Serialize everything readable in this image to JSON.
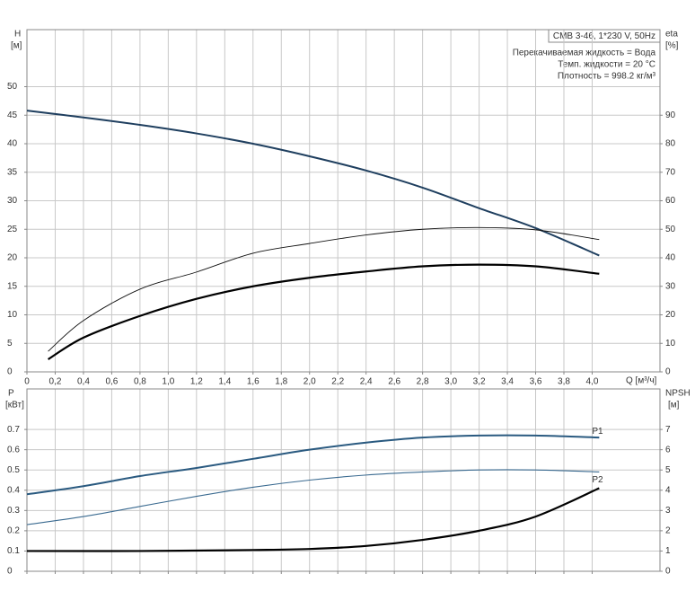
{
  "chart_data": [
    {
      "type": "line",
      "xlabel": "Q [м³/ч]",
      "ylabel": "H",
      "ylabel_unit": "[м]",
      "y2label": "eta",
      "y2label_unit": "[%]",
      "annotations": [
        "CMB 3-46, 1*230 V, 50Hz",
        "Перекачиваемая жидкость = Вода",
        "Темп. жидкости = 20 °C",
        "Плотность = 998.2 кг/м³"
      ],
      "xlim": [
        0,
        4.48
      ],
      "ylim": [
        0,
        60
      ],
      "y2lim": [
        0,
        120
      ],
      "xticks": [
        0,
        {
          "value": 0.2,
          "label": "0,2"
        },
        {
          "value": 0.4,
          "label": "0,4"
        },
        {
          "value": 0.6,
          "label": "0,6"
        },
        {
          "value": 0.8,
          "label": "0,8"
        },
        {
          "value": 1.0,
          "label": "1,0"
        },
        {
          "value": 1.2,
          "label": "1,2"
        },
        {
          "value": 1.4,
          "label": "1,4"
        },
        {
          "value": 1.6,
          "label": "1,6"
        },
        {
          "value": 1.8,
          "label": "1,8"
        },
        {
          "value": 2.0,
          "label": "2,0"
        },
        {
          "value": 2.2,
          "label": "2,2"
        },
        {
          "value": 2.4,
          "label": "2,4"
        },
        {
          "value": 2.6,
          "label": "2,6"
        },
        {
          "value": 2.8,
          "label": "2,8"
        },
        {
          "value": 3.0,
          "label": "3,0"
        },
        {
          "value": 3.2,
          "label": "3,2"
        },
        {
          "value": 3.4,
          "label": "3,4"
        },
        {
          "value": 3.6,
          "label": "3,6"
        },
        {
          "value": 3.8,
          "label": "3,8"
        },
        {
          "value": 4.0,
          "label": "4,0"
        }
      ],
      "yticks": [
        0,
        5,
        10,
        15,
        20,
        25,
        30,
        35,
        40,
        45,
        50
      ],
      "y2ticks": [
        0,
        10,
        20,
        30,
        40,
        50,
        60,
        70,
        80,
        90
      ],
      "grid": true,
      "series": [
        {
          "color": "#1f3f5f",
          "x": [
            0,
            0.4,
            0.8,
            1.2,
            1.6,
            2.0,
            2.4,
            2.8,
            3.2,
            3.6,
            4.05
          ],
          "values": [
            45.8,
            44.6,
            43.3,
            41.8,
            40.0,
            37.8,
            35.3,
            32.3,
            28.7,
            25.2,
            20.4
          ]
        },
        {
          "color": "#111111",
          "axis": "y2",
          "x": [
            0.15,
            0.4,
            0.8,
            1.2,
            1.6,
            2.0,
            2.4,
            2.8,
            3.2,
            3.6,
            4.05
          ],
          "values": [
            7.2,
            18,
            29,
            35,
            41.6,
            45,
            48,
            50,
            50.6,
            49.8,
            46.4
          ]
        },
        {
          "color": "#000000",
          "axis": "y2",
          "x": [
            0.15,
            0.4,
            0.8,
            1.2,
            1.6,
            2.0,
            2.4,
            2.8,
            3.2,
            3.6,
            4.05
          ],
          "values": [
            4.4,
            12,
            19.6,
            25.6,
            30,
            33,
            35.2,
            37,
            37.6,
            37,
            34.4
          ]
        }
      ]
    },
    {
      "type": "line",
      "ylabel": "P",
      "ylabel_unit": "[кВт]",
      "y2label": "NPSH",
      "y2label_unit": "[м]",
      "xlim": [
        0,
        4.48
      ],
      "ylim": [
        0,
        0.9
      ],
      "y2lim": [
        0,
        9
      ],
      "yticks": [
        0,
        0.1,
        0.2,
        0.3,
        0.4,
        0.5,
        0.6,
        0.7
      ],
      "y2ticks": [
        0,
        1,
        2,
        3,
        4,
        5,
        6,
        7
      ],
      "grid": true,
      "series": [
        {
          "name": "P1",
          "color": "#2a5a80",
          "x": [
            0,
            0.4,
            0.8,
            1.2,
            1.6,
            2.0,
            2.4,
            2.8,
            3.2,
            3.6,
            4.05
          ],
          "values": [
            0.38,
            0.42,
            0.47,
            0.51,
            0.555,
            0.6,
            0.635,
            0.66,
            0.67,
            0.67,
            0.66
          ]
        },
        {
          "name": "P2",
          "color": "#3a6a90",
          "x": [
            0,
            0.4,
            0.8,
            1.2,
            1.6,
            2.0,
            2.4,
            2.8,
            3.2,
            3.6,
            4.05
          ],
          "values": [
            0.23,
            0.27,
            0.32,
            0.37,
            0.415,
            0.45,
            0.475,
            0.49,
            0.5,
            0.5,
            0.49
          ]
        },
        {
          "color": "#000000",
          "axis": "y2",
          "x": [
            0,
            0.8,
            1.6,
            2.0,
            2.4,
            2.8,
            3.2,
            3.6,
            4.05
          ],
          "values": [
            1.0,
            1.0,
            1.05,
            1.1,
            1.25,
            1.55,
            2.0,
            2.7,
            4.1
          ]
        }
      ]
    }
  ]
}
